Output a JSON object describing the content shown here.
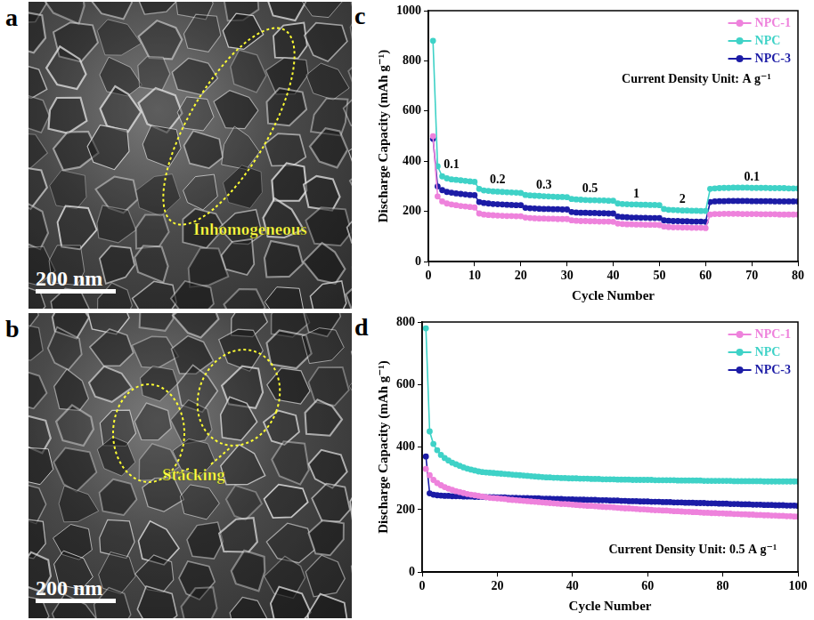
{
  "images": [
    {
      "letter": "a",
      "scale_bar": "200 nm",
      "annotation": "Inhomogeneous"
    },
    {
      "letter": "b",
      "scale_bar": "200 nm",
      "annotation": "Stacking"
    }
  ],
  "chart_data": [
    {
      "letter": "c",
      "type": "line",
      "marker": "circle",
      "grid": false,
      "legend": "upper right",
      "x_label": "Cycle Number",
      "y_label": "Discharge Capacity (mAh g⁻¹)",
      "xlim": [
        0,
        80
      ],
      "xticks": [
        0,
        10,
        20,
        30,
        40,
        50,
        60,
        70,
        80
      ],
      "ylim": [
        0,
        1000
      ],
      "yticks": [
        0,
        200,
        400,
        600,
        800,
        1000
      ],
      "annotations": [
        {
          "text": "Current Density Unit: A g⁻¹",
          "x": 58,
          "y": 700
        },
        {
          "text": "0.1",
          "x": 5,
          "y": 360
        },
        {
          "text": "0.2",
          "x": 15,
          "y": 300
        },
        {
          "text": "0.3",
          "x": 25,
          "y": 280
        },
        {
          "text": "0.5",
          "x": 35,
          "y": 265
        },
        {
          "text": "1",
          "x": 45,
          "y": 245
        },
        {
          "text": "2",
          "x": 55,
          "y": 222
        },
        {
          "text": "0.1",
          "x": 70,
          "y": 312
        }
      ],
      "x": [
        1,
        2,
        3,
        4,
        5,
        6,
        7,
        8,
        9,
        10,
        11,
        12,
        13,
        14,
        15,
        16,
        17,
        18,
        19,
        20,
        21,
        22,
        23,
        24,
        25,
        26,
        27,
        28,
        29,
        30,
        31,
        32,
        33,
        34,
        35,
        36,
        37,
        38,
        39,
        40,
        41,
        42,
        43,
        44,
        45,
        46,
        47,
        48,
        49,
        50,
        51,
        52,
        53,
        54,
        55,
        56,
        57,
        58,
        59,
        60,
        61,
        62,
        63,
        64,
        65,
        66,
        67,
        68,
        69,
        70,
        71,
        72,
        73,
        74,
        75,
        76,
        77,
        78,
        79,
        80
      ],
      "series": [
        {
          "name": "NPC-1",
          "color": "#ee82dc",
          "values": [
            500,
            260,
            240,
            232,
            228,
            225,
            222,
            220,
            218,
            216,
            192,
            188,
            186,
            185,
            184,
            183,
            182,
            182,
            181,
            181,
            176,
            174,
            173,
            172,
            172,
            171,
            171,
            170,
            170,
            170,
            165,
            163,
            162,
            162,
            161,
            161,
            160,
            160,
            160,
            159,
            152,
            150,
            149,
            149,
            148,
            148,
            147,
            147,
            147,
            146,
            140,
            138,
            137,
            137,
            136,
            136,
            135,
            135,
            135,
            134,
            188,
            190,
            190,
            191,
            191,
            191,
            191,
            190,
            190,
            190,
            190,
            189,
            189,
            189,
            189,
            188,
            188,
            188,
            188,
            188
          ]
        },
        {
          "name": "NPC",
          "color": "#3fd2c7",
          "values": [
            880,
            380,
            340,
            332,
            328,
            326,
            324,
            322,
            320,
            318,
            290,
            284,
            282,
            280,
            279,
            278,
            277,
            276,
            275,
            274,
            266,
            264,
            263,
            262,
            261,
            260,
            259,
            258,
            258,
            257,
            250,
            248,
            247,
            246,
            245,
            245,
            244,
            244,
            243,
            243,
            232,
            230,
            229,
            228,
            228,
            227,
            227,
            226,
            226,
            225,
            210,
            207,
            206,
            205,
            204,
            204,
            203,
            203,
            202,
            202,
            290,
            292,
            293,
            294,
            294,
            295,
            295,
            295,
            295,
            294,
            294,
            294,
            294,
            293,
            293,
            293,
            293,
            292,
            292,
            292
          ]
        },
        {
          "name": "NPC-3",
          "color": "#1c1ca6",
          "values": [
            490,
            300,
            285,
            278,
            275,
            272,
            270,
            268,
            266,
            265,
            238,
            234,
            232,
            230,
            229,
            228,
            227,
            226,
            225,
            225,
            215,
            213,
            212,
            211,
            210,
            210,
            209,
            209,
            208,
            208,
            198,
            196,
            195,
            195,
            194,
            194,
            193,
            193,
            192,
            192,
            180,
            178,
            177,
            176,
            176,
            175,
            175,
            174,
            174,
            174,
            165,
            163,
            162,
            162,
            161,
            161,
            160,
            160,
            160,
            159,
            238,
            240,
            241,
            241,
            242,
            242,
            242,
            242,
            242,
            241,
            241,
            241,
            241,
            241,
            240,
            240,
            240,
            240,
            240,
            240
          ]
        }
      ]
    },
    {
      "letter": "d",
      "type": "line",
      "marker": "circle",
      "grid": false,
      "legend": "upper right",
      "x_label": "Cycle Number",
      "y_label": "Discharge Capacity (mAh g⁻¹)",
      "xlim": [
        0,
        100
      ],
      "xticks": [
        0,
        20,
        40,
        60,
        80,
        100
      ],
      "ylim": [
        0,
        800
      ],
      "yticks": [
        0,
        200,
        400,
        600,
        800
      ],
      "annotations": [
        {
          "text": "Current Density Unit: 0.5 A g⁻¹",
          "x": 72,
          "y": 50
        }
      ],
      "x": [
        1,
        2,
        3,
        4,
        5,
        6,
        7,
        8,
        9,
        10,
        11,
        12,
        13,
        14,
        15,
        16,
        17,
        18,
        19,
        20,
        21,
        22,
        23,
        24,
        25,
        26,
        27,
        28,
        29,
        30,
        31,
        32,
        33,
        34,
        35,
        36,
        37,
        38,
        39,
        40,
        41,
        42,
        43,
        44,
        45,
        46,
        47,
        48,
        49,
        50,
        51,
        52,
        53,
        54,
        55,
        56,
        57,
        58,
        59,
        60,
        61,
        62,
        63,
        64,
        65,
        66,
        67,
        68,
        69,
        70,
        71,
        72,
        73,
        74,
        75,
        76,
        77,
        78,
        79,
        80,
        81,
        82,
        83,
        84,
        85,
        86,
        87,
        88,
        89,
        90,
        91,
        92,
        93,
        94,
        95,
        96,
        97,
        98,
        99,
        100
      ],
      "series": [
        {
          "name": "NPC-1",
          "color": "#ee82dc",
          "values": [
            330,
            310,
            295,
            285,
            278,
            272,
            267,
            263,
            259,
            256,
            253,
            250,
            248,
            246,
            244,
            242,
            240,
            238,
            237,
            236,
            235,
            234,
            232,
            231,
            230,
            229,
            228,
            227,
            226,
            225,
            224,
            223,
            222,
            221,
            220,
            219,
            218,
            218,
            217,
            216,
            215,
            214,
            213,
            212,
            212,
            211,
            210,
            209,
            208,
            208,
            207,
            206,
            205,
            204,
            204,
            203,
            202,
            201,
            201,
            200,
            199,
            198,
            198,
            197,
            197,
            196,
            195,
            195,
            194,
            193,
            193,
            192,
            192,
            191,
            190,
            190,
            189,
            189,
            188,
            188,
            187,
            187,
            186,
            186,
            185,
            185,
            184,
            184,
            183,
            183,
            182,
            182,
            181,
            181,
            180,
            180,
            179,
            179,
            178,
            178
          ]
        },
        {
          "name": "NPC",
          "color": "#3fd2c7",
          "values": [
            780,
            450,
            410,
            390,
            375,
            365,
            357,
            350,
            345,
            340,
            335,
            331,
            328,
            325,
            322,
            320,
            319,
            318,
            317,
            316,
            315,
            314,
            313,
            312,
            311,
            310,
            309,
            308,
            307,
            306,
            305,
            304,
            303,
            303,
            302,
            302,
            301,
            301,
            300,
            300,
            300,
            299,
            299,
            299,
            298,
            298,
            298,
            297,
            297,
            297,
            297,
            296,
            296,
            296,
            296,
            295,
            295,
            295,
            295,
            295,
            295,
            294,
            294,
            294,
            294,
            294,
            294,
            293,
            293,
            293,
            293,
            293,
            293,
            293,
            292,
            292,
            292,
            292,
            292,
            292,
            292,
            292,
            291,
            291,
            291,
            291,
            291,
            291,
            291,
            291,
            290,
            290,
            290,
            290,
            290,
            290,
            290,
            290,
            290,
            290
          ]
        },
        {
          "name": "NPC-3",
          "color": "#1c1ca6",
          "values": [
            370,
            252,
            248,
            246,
            245,
            244,
            244,
            243,
            243,
            243,
            242,
            242,
            242,
            241,
            241,
            241,
            240,
            240,
            240,
            239,
            239,
            239,
            238,
            238,
            238,
            237,
            237,
            237,
            236,
            236,
            236,
            235,
            235,
            235,
            234,
            234,
            234,
            233,
            233,
            233,
            232,
            232,
            232,
            231,
            231,
            231,
            230,
            230,
            230,
            229,
            229,
            229,
            228,
            228,
            227,
            227,
            227,
            226,
            226,
            226,
            225,
            225,
            225,
            224,
            224,
            224,
            223,
            223,
            223,
            222,
            222,
            222,
            221,
            221,
            221,
            220,
            220,
            220,
            219,
            219,
            219,
            218,
            218,
            218,
            217,
            217,
            217,
            216,
            216,
            216,
            215,
            215,
            215,
            214,
            214,
            214,
            213,
            213,
            213,
            212
          ]
        }
      ]
    }
  ]
}
